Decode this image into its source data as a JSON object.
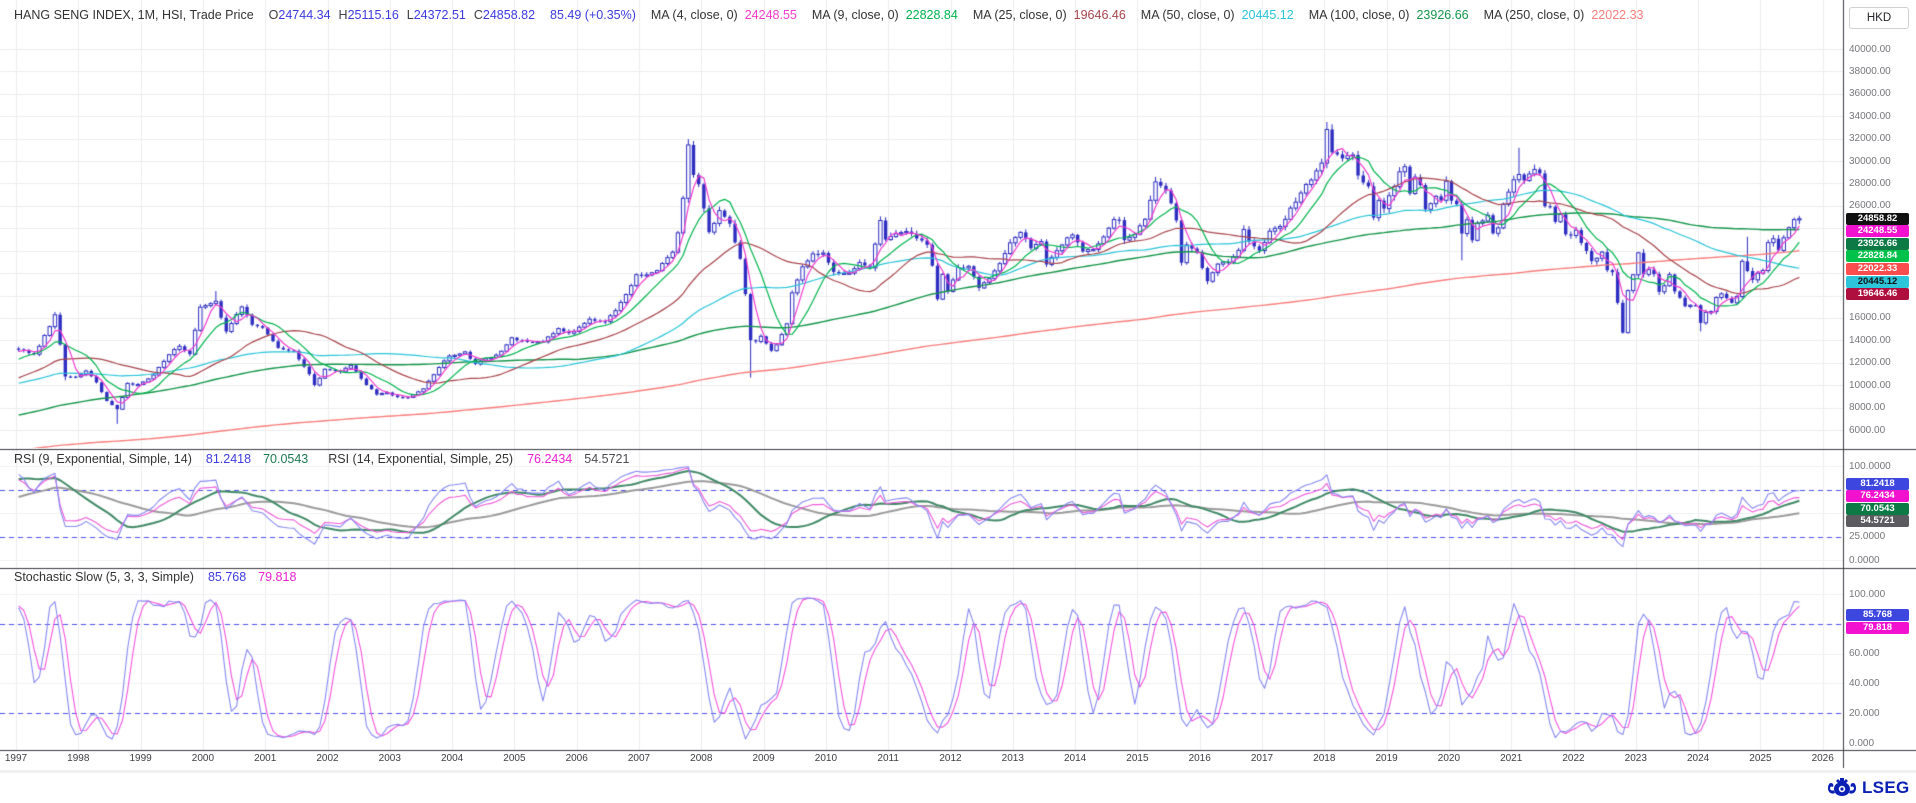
{
  "header": {
    "instrument": "HANG SENG INDEX, 1M, HSI, Trade Price",
    "ohlc": [
      {
        "label": "O",
        "value": "24744.34"
      },
      {
        "label": "H",
        "value": "25115.16"
      },
      {
        "label": "L",
        "value": "24372.51"
      },
      {
        "label": "C",
        "value": "24858.82"
      }
    ],
    "change": "85.49 (+0.35%)",
    "currency": "HKD",
    "mas": [
      {
        "label": "MA (4, close, 0)",
        "value": "24248.55",
        "color": "#f23cce"
      },
      {
        "label": "MA (9, close, 0)",
        "value": "22828.84",
        "color": "#00b44e"
      },
      {
        "label": "MA (25, close, 0)",
        "value": "19646.46",
        "color": "#a8454c"
      },
      {
        "label": "MA (50, close, 0)",
        "value": "20445.12",
        "color": "#29c4d9"
      },
      {
        "label": "MA (100, close, 0)",
        "value": "23926.66",
        "color": "#15954a"
      },
      {
        "label": "MA (250, close, 0)",
        "value": "22022.33",
        "color": "#f97d7d"
      }
    ]
  },
  "main_panel": {
    "y_ticks": [
      {
        "label": "40000.00",
        "value": 40000
      },
      {
        "label": "38000.00",
        "value": 38000
      },
      {
        "label": "36000.00",
        "value": 36000
      },
      {
        "label": "34000.00",
        "value": 34000
      },
      {
        "label": "32000.00",
        "value": 32000
      },
      {
        "label": "30000.00",
        "value": 30000
      },
      {
        "label": "28000.00",
        "value": 28000
      },
      {
        "label": "26000.00",
        "value": 26000
      },
      {
        "label": "18000.00",
        "value": 18000
      },
      {
        "label": "16000.00",
        "value": 16000
      },
      {
        "label": "14000.00",
        "value": 14000
      },
      {
        "label": "12000.00",
        "value": 12000
      },
      {
        "label": "10000.00",
        "value": 10000
      },
      {
        "label": "8000.00",
        "value": 8000
      },
      {
        "label": "6000.00",
        "value": 6000
      }
    ],
    "price_tags": [
      {
        "text": "24858.82",
        "value": 24858.82,
        "bg": "#111111",
        "fg": "#ffffff"
      },
      {
        "text": "24248.55",
        "value": 24248.55,
        "bg": "#f211cf",
        "fg": "#ffffff"
      },
      {
        "text": "23926.66",
        "value": 23926.66,
        "bg": "#0d7a45",
        "fg": "#ffffff"
      },
      {
        "text": "22828.84",
        "value": 22828.84,
        "bg": "#00c24a",
        "fg": "#ffffff"
      },
      {
        "text": "22022.33",
        "value": 22022.33,
        "bg": "#fb4d4d",
        "fg": "#ffffff"
      },
      {
        "text": "20445.12",
        "value": 20445.12,
        "bg": "#2cc5d9",
        "fg": "#111111"
      },
      {
        "text": "19646.46",
        "value": 19646.46,
        "bg": "#ae0f3e",
        "fg": "#ffffff"
      }
    ]
  },
  "rsi_panel": {
    "title1": "RSI (9, Exponential, Simple, 14)",
    "values1": [
      {
        "text": "81.2418",
        "color": "#3c3ce0"
      },
      {
        "text": "70.0543",
        "color": "#1d7a4f"
      }
    ],
    "title2": "RSI (14, Exponential, Simple, 25)",
    "values2": [
      {
        "text": "76.2434",
        "color": "#ea1fd0"
      },
      {
        "text": "54.5721",
        "color": "#4c4c52"
      }
    ],
    "ticks": [
      {
        "label": "100.0000",
        "value": 100
      },
      {
        "label": "25.0000",
        "value": 25
      },
      {
        "label": "0.0000",
        "value": 0
      }
    ],
    "tags": [
      {
        "text": "81.2418",
        "value": 81.2418,
        "bg": "#3d47e0",
        "fg": "#ffffff"
      },
      {
        "text": "76.2434",
        "value": 76.2434,
        "bg": "#f211cf",
        "fg": "#ffffff"
      },
      {
        "text": "70.0543",
        "value": 70.0543,
        "bg": "#0d7a45",
        "fg": "#ffffff"
      },
      {
        "text": "54.5721",
        "value": 54.5721,
        "bg": "#5c5c60",
        "fg": "#ffffff"
      }
    ]
  },
  "stoch_panel": {
    "title": "Stochastic Slow (5, 3, 3, Simple)",
    "values": [
      {
        "text": "85.768",
        "color": "#3c3ce0"
      },
      {
        "text": "79.818",
        "color": "#ea1fd0"
      }
    ],
    "ticks": [
      {
        "label": "100.000",
        "value": 100
      },
      {
        "label": "60.000",
        "value": 60
      },
      {
        "label": "40.000",
        "value": 40
      },
      {
        "label": "20.000",
        "value": 20
      },
      {
        "label": "0.000",
        "value": 0
      }
    ],
    "tags": [
      {
        "text": "85.768",
        "value": 85.768,
        "bg": "#3d47e0",
        "fg": "#ffffff"
      },
      {
        "text": "79.818",
        "value": 79.818,
        "bg": "#f211cf",
        "fg": "#ffffff"
      }
    ]
  },
  "x_axis": {
    "years": [
      "1997",
      "1998",
      "1999",
      "2000",
      "2001",
      "2002",
      "2003",
      "2004",
      "2005",
      "2006",
      "2007",
      "2008",
      "2009",
      "2010",
      "2011",
      "2012",
      "2013",
      "2014",
      "2015",
      "2016",
      "2017",
      "2018",
      "2019",
      "2020",
      "2021",
      "2022",
      "2023",
      "2024",
      "2025",
      "2026"
    ]
  },
  "footer": {
    "logo_text": "LSEG"
  },
  "chart_data": {
    "type": "candlestick",
    "title": "HANG SENG INDEX, 1M, HSI, Trade Price",
    "frequency": "monthly",
    "x_domain_years": [
      1997,
      2026.3
    ],
    "main_ylim": [
      4400,
      41700
    ],
    "rsi_ylim": [
      0,
      100
    ],
    "stoch_ylim": [
      0,
      100
    ],
    "grid": true,
    "candle_color": "#2e2ec2",
    "last_candle": {
      "open": 24744.34,
      "high": 25115.16,
      "low": 24372.51,
      "close": 24858.82
    },
    "close_anchors": [
      [
        1997.04,
        13200
      ],
      [
        1997.29,
        12700
      ],
      [
        1997.54,
        15200
      ],
      [
        1997.63,
        16365
      ],
      [
        1997.79,
        10765
      ],
      [
        1997.96,
        10722
      ],
      [
        1998.13,
        11300
      ],
      [
        1998.29,
        10300
      ],
      [
        1998.46,
        8550
      ],
      [
        1998.63,
        7829
      ],
      [
        1998.79,
        10100
      ],
      [
        1998.96,
        10049
      ],
      [
        1999.21,
        10900
      ],
      [
        1999.46,
        12800
      ],
      [
        1999.63,
        13500
      ],
      [
        1999.79,
        12700
      ],
      [
        1999.96,
        16962
      ],
      [
        2000.21,
        17406
      ],
      [
        2000.38,
        14700
      ],
      [
        2000.63,
        17100
      ],
      [
        2000.79,
        15400
      ],
      [
        2000.96,
        15100
      ],
      [
        2001.21,
        13300
      ],
      [
        2001.46,
        13000
      ],
      [
        2001.71,
        11000
      ],
      [
        2001.79,
        9950
      ],
      [
        2001.96,
        11397
      ],
      [
        2002.21,
        11200
      ],
      [
        2002.38,
        11800
      ],
      [
        2002.63,
        10000
      ],
      [
        2002.79,
        9200
      ],
      [
        2002.96,
        9321
      ],
      [
        2003.13,
        8900
      ],
      [
        2003.29,
        8850
      ],
      [
        2003.54,
        9600
      ],
      [
        2003.71,
        11000
      ],
      [
        2003.88,
        12200
      ],
      [
        2003.96,
        12576
      ],
      [
        2004.21,
        12900
      ],
      [
        2004.38,
        11900
      ],
      [
        2004.63,
        12500
      ],
      [
        2004.79,
        13000
      ],
      [
        2004.96,
        14230
      ],
      [
        2005.21,
        13800
      ],
      [
        2005.46,
        13900
      ],
      [
        2005.71,
        15000
      ],
      [
        2005.88,
        14600
      ],
      [
        2005.96,
        14876
      ],
      [
        2006.21,
        15900
      ],
      [
        2006.46,
        15600
      ],
      [
        2006.71,
        17300
      ],
      [
        2006.88,
        18900
      ],
      [
        2006.96,
        19965
      ],
      [
        2007.13,
        19800
      ],
      [
        2007.29,
        20300
      ],
      [
        2007.54,
        21900
      ],
      [
        2007.63,
        23600
      ],
      [
        2007.71,
        26900
      ],
      [
        2007.79,
        31352
      ],
      [
        2007.88,
        28600
      ],
      [
        2007.96,
        27813
      ],
      [
        2008.13,
        23500
      ],
      [
        2008.29,
        25700
      ],
      [
        2008.46,
        24500
      ],
      [
        2008.54,
        22700
      ],
      [
        2008.63,
        21300
      ],
      [
        2008.71,
        18000
      ],
      [
        2008.79,
        13968
      ],
      [
        2008.88,
        13900
      ],
      [
        2008.96,
        14387
      ],
      [
        2009.13,
        13000
      ],
      [
        2009.21,
        13576
      ],
      [
        2009.38,
        15500
      ],
      [
        2009.46,
        18200
      ],
      [
        2009.63,
        20600
      ],
      [
        2009.79,
        21800
      ],
      [
        2009.96,
        21873
      ],
      [
        2010.13,
        20100
      ],
      [
        2010.38,
        20000
      ],
      [
        2010.54,
        21000
      ],
      [
        2010.71,
        20500
      ],
      [
        2010.88,
        24700
      ],
      [
        2010.96,
        23035
      ],
      [
        2011.13,
        23500
      ],
      [
        2011.29,
        23700
      ],
      [
        2011.46,
        23200
      ],
      [
        2011.63,
        22400
      ],
      [
        2011.71,
        20500
      ],
      [
        2011.79,
        17592
      ],
      [
        2011.88,
        19900
      ],
      [
        2011.96,
        18434
      ],
      [
        2012.13,
        20500
      ],
      [
        2012.29,
        20600
      ],
      [
        2012.46,
        18600
      ],
      [
        2012.63,
        19600
      ],
      [
        2012.79,
        20800
      ],
      [
        2012.96,
        22657
      ],
      [
        2013.13,
        23700
      ],
      [
        2013.29,
        22300
      ],
      [
        2013.46,
        22700
      ],
      [
        2013.54,
        20800
      ],
      [
        2013.71,
        22000
      ],
      [
        2013.88,
        23200
      ],
      [
        2013.96,
        23306
      ],
      [
        2014.13,
        22000
      ],
      [
        2014.29,
        22200
      ],
      [
        2014.46,
        23100
      ],
      [
        2014.63,
        24800
      ],
      [
        2014.71,
        24700
      ],
      [
        2014.79,
        22900
      ],
      [
        2014.96,
        23605
      ],
      [
        2015.13,
        24800
      ],
      [
        2015.29,
        28133
      ],
      [
        2015.46,
        27400
      ],
      [
        2015.54,
        26250
      ],
      [
        2015.63,
        24600
      ],
      [
        2015.71,
        20840
      ],
      [
        2015.79,
        22600
      ],
      [
        2015.96,
        21914
      ],
      [
        2016.13,
        19112
      ],
      [
        2016.29,
        20777
      ],
      [
        2016.46,
        21000
      ],
      [
        2016.63,
        22000
      ],
      [
        2016.71,
        23900
      ],
      [
        2016.79,
        22900
      ],
      [
        2016.96,
        22001
      ],
      [
        2017.13,
        23740
      ],
      [
        2017.29,
        24100
      ],
      [
        2017.46,
        25700
      ],
      [
        2017.63,
        27300
      ],
      [
        2017.71,
        27970
      ],
      [
        2017.79,
        28250
      ],
      [
        2017.88,
        29177
      ],
      [
        2017.96,
        29919
      ],
      [
        2018.04,
        32887
      ],
      [
        2018.13,
        30845
      ],
      [
        2018.29,
        30280
      ],
      [
        2018.46,
        30468
      ],
      [
        2018.54,
        28583
      ],
      [
        2018.63,
        27888
      ],
      [
        2018.71,
        27788
      ],
      [
        2018.79,
        24980
      ],
      [
        2018.88,
        26507
      ],
      [
        2018.96,
        25846
      ],
      [
        2019.13,
        27942
      ],
      [
        2019.21,
        29051
      ],
      [
        2019.29,
        29699
      ],
      [
        2019.38,
        26901
      ],
      [
        2019.46,
        28543
      ],
      [
        2019.54,
        27778
      ],
      [
        2019.63,
        25725
      ],
      [
        2019.71,
        26092
      ],
      [
        2019.79,
        26907
      ],
      [
        2019.88,
        26346
      ],
      [
        2019.96,
        28190
      ],
      [
        2020.04,
        26313
      ],
      [
        2020.13,
        26130
      ],
      [
        2020.21,
        23603
      ],
      [
        2020.29,
        24644
      ],
      [
        2020.38,
        22961
      ],
      [
        2020.46,
        24427
      ],
      [
        2020.54,
        24595
      ],
      [
        2020.63,
        25177
      ],
      [
        2020.71,
        23459
      ],
      [
        2020.79,
        24107
      ],
      [
        2020.88,
        26341
      ],
      [
        2020.96,
        27231
      ],
      [
        2021.04,
        28284
      ],
      [
        2021.13,
        28980
      ],
      [
        2021.21,
        28378
      ],
      [
        2021.29,
        28725
      ],
      [
        2021.38,
        29152
      ],
      [
        2021.46,
        28828
      ],
      [
        2021.54,
        25961
      ],
      [
        2021.63,
        25879
      ],
      [
        2021.71,
        24576
      ],
      [
        2021.79,
        25377
      ],
      [
        2021.88,
        23476
      ],
      [
        2021.96,
        23398
      ],
      [
        2022.04,
        23802
      ],
      [
        2022.13,
        22713
      ],
      [
        2022.21,
        21997
      ],
      [
        2022.29,
        21089
      ],
      [
        2022.38,
        21415
      ],
      [
        2022.46,
        21860
      ],
      [
        2022.54,
        20157
      ],
      [
        2022.63,
        19954
      ],
      [
        2022.71,
        17223
      ],
      [
        2022.79,
        14687
      ],
      [
        2022.88,
        18597
      ],
      [
        2022.96,
        19781
      ],
      [
        2023.04,
        21842
      ],
      [
        2023.13,
        19786
      ],
      [
        2023.21,
        20400
      ],
      [
        2023.29,
        19895
      ],
      [
        2023.38,
        18234
      ],
      [
        2023.46,
        18916
      ],
      [
        2023.54,
        19917
      ],
      [
        2023.63,
        18382
      ],
      [
        2023.71,
        17810
      ],
      [
        2023.79,
        17112
      ],
      [
        2023.88,
        17043
      ],
      [
        2023.96,
        17047
      ],
      [
        2024.04,
        15485
      ],
      [
        2024.13,
        16511
      ],
      [
        2024.21,
        16541
      ],
      [
        2024.29,
        17763
      ],
      [
        2024.38,
        18080
      ],
      [
        2024.46,
        17719
      ],
      [
        2024.54,
        17345
      ],
      [
        2024.63,
        17989
      ],
      [
        2024.71,
        21134
      ],
      [
        2024.79,
        20317
      ],
      [
        2024.88,
        19424
      ],
      [
        2024.96,
        20060
      ],
      [
        2025.04,
        20225
      ],
      [
        2025.13,
        22941
      ],
      [
        2025.21,
        23120
      ],
      [
        2025.29,
        22119
      ],
      [
        2025.38,
        23290
      ],
      [
        2025.46,
        24072
      ],
      [
        2025.54,
        24773
      ],
      [
        2025.63,
        24858.82
      ]
    ],
    "warmup_anchors": [
      [
        1976.0,
        1100
      ],
      [
        1978.0,
        1500
      ],
      [
        1980.0,
        2300
      ],
      [
        1981.6,
        2200
      ],
      [
        1983.0,
        1400
      ],
      [
        1984.5,
        1800
      ],
      [
        1986.0,
        2600
      ],
      [
        1987.7,
        4200
      ],
      [
        1987.95,
        2600
      ],
      [
        1989.3,
        3400
      ],
      [
        1989.5,
        2700
      ],
      [
        1990.5,
        3600
      ],
      [
        1991.5,
        5000
      ],
      [
        1992.5,
        6800
      ],
      [
        1993.2,
        8000
      ],
      [
        1993.96,
        11888
      ],
      [
        1994.6,
        9500
      ],
      [
        1995.1,
        8200
      ],
      [
        1995.96,
        10500
      ],
      [
        1996.5,
        11600
      ],
      [
        1996.96,
        13203
      ]
    ],
    "wick_overrides": {
      "1997-10": {
        "low": 10426
      },
      "1998-8": {
        "low": 6545
      },
      "2000-3": {
        "high": 18398
      },
      "2007-10": {
        "high": 31958
      },
      "2008-10": {
        "low": 10676
      },
      "2015-4": {
        "high": 28589
      },
      "2018-1": {
        "high": 33484
      },
      "2020-3": {
        "low": 21139
      },
      "2021-2": {
        "high": 31183
      },
      "2022-10": {
        "low": 14597
      },
      "2024-1": {
        "low": 14794
      },
      "2024-10": {
        "high": 23242
      }
    },
    "moving_averages": [
      {
        "period": 4,
        "color": "#f23cce"
      },
      {
        "period": 9,
        "color": "#00b44e"
      },
      {
        "period": 25,
        "color": "#a8454c"
      },
      {
        "period": 50,
        "color": "#29c4d9"
      },
      {
        "period": 100,
        "color": "#15954a"
      },
      {
        "period": 250,
        "color": "#f97d7d"
      }
    ],
    "rsi": {
      "series": [
        {
          "period": 9,
          "color": "#8789f2",
          "smooth_period": 14,
          "smooth_color": "#418a67"
        },
        {
          "period": 14,
          "color": "#ef5ad8",
          "smooth_period": 25,
          "smooth_color": "#9b9b9b"
        }
      ],
      "dashed_levels": [
        75,
        25
      ],
      "dashed_color": "#4d52e8"
    },
    "stochastic": {
      "k_period": 5,
      "k_smooth": 3,
      "d_period": 3,
      "k_color": "#8789f2",
      "d_color": "#f653dd",
      "dashed_levels": [
        80,
        20
      ],
      "dashed_color": "#4d52e8"
    }
  }
}
